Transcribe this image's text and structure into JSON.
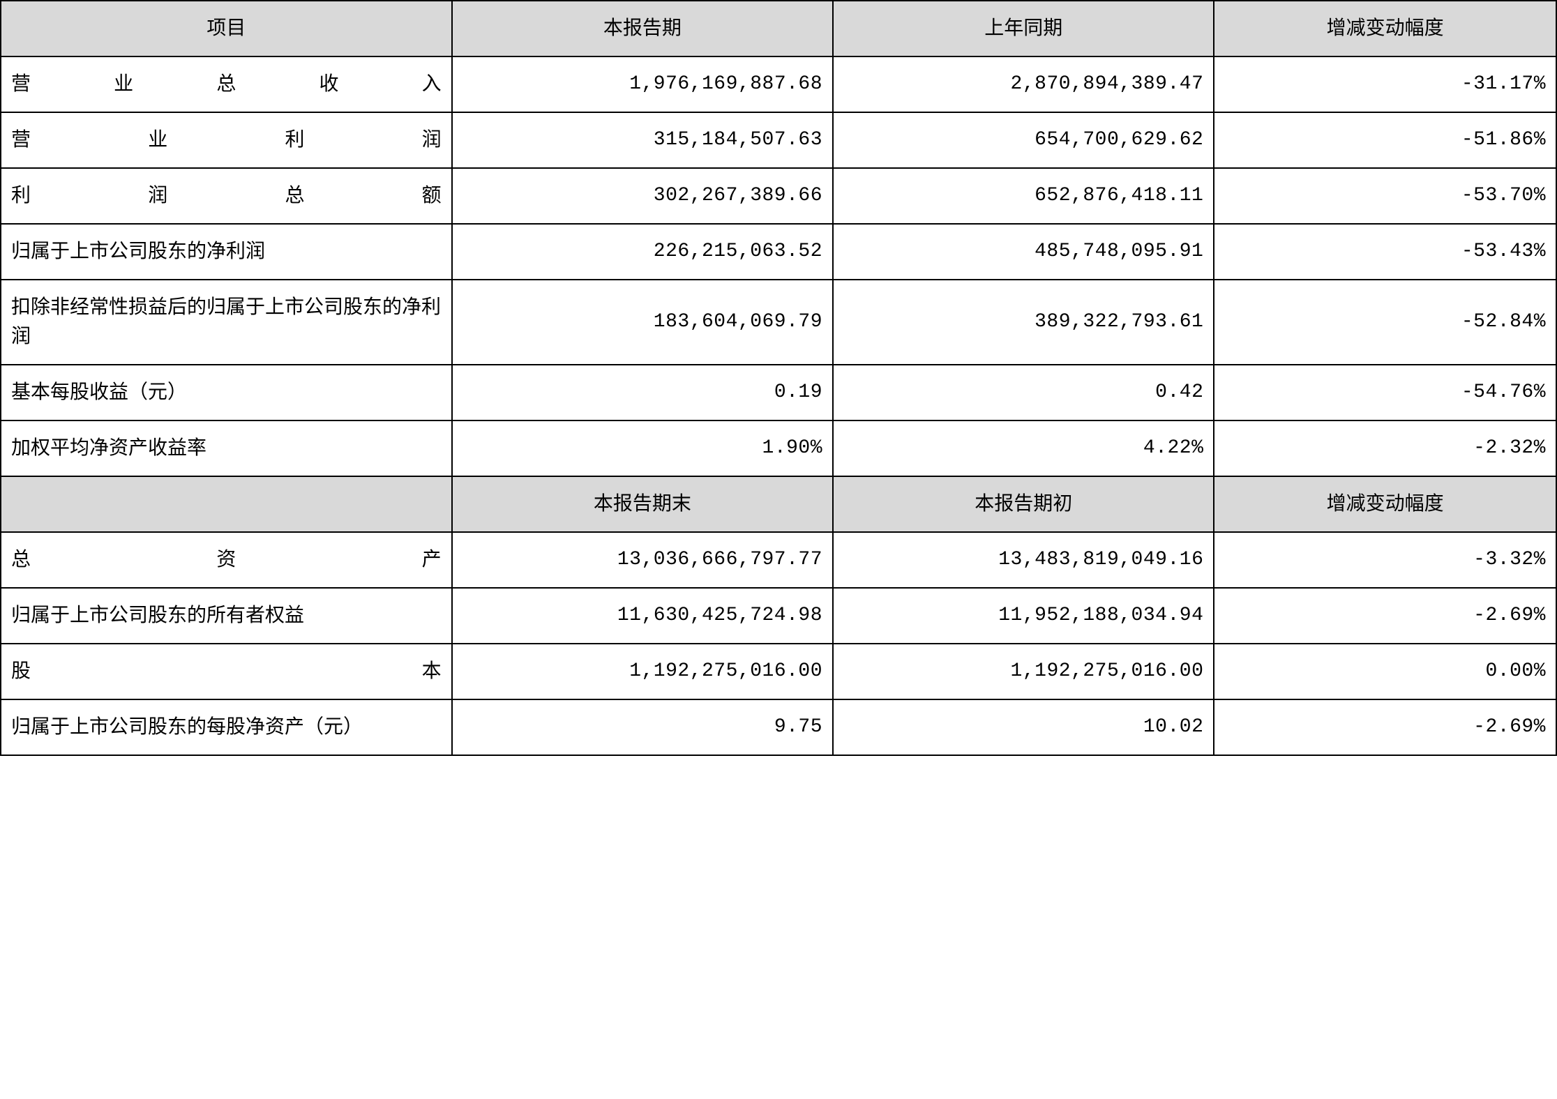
{
  "table": {
    "type": "table",
    "background_color": "#ffffff",
    "header_bg_color": "#d9d9d9",
    "border_color": "#000000",
    "font_size": 28,
    "columns": [
      {
        "key": "item",
        "width_pct": 29,
        "align": "left"
      },
      {
        "key": "current",
        "width_pct": 24.5,
        "align": "right"
      },
      {
        "key": "previous",
        "width_pct": 24.5,
        "align": "right"
      },
      {
        "key": "change",
        "width_pct": 22,
        "align": "right"
      }
    ],
    "header1": {
      "item": "项目",
      "current": "本报告期",
      "previous": "上年同期",
      "change": "增减变动幅度"
    },
    "section1_rows": [
      {
        "item": "营业总收入",
        "current": "1,976,169,887.68",
        "previous": "2,870,894,389.47",
        "change": "-31.17%"
      },
      {
        "item": "营业利润",
        "current": "315,184,507.63",
        "previous": "654,700,629.62",
        "change": "-51.86%"
      },
      {
        "item": "利润总额",
        "current": "302,267,389.66",
        "previous": "652,876,418.11",
        "change": "-53.70%"
      },
      {
        "item": "归属于上市公司股东的净利润",
        "current": "226,215,063.52",
        "previous": "485,748,095.91",
        "change": "-53.43%"
      },
      {
        "item": "扣除非经常性损益后的归属于上市公司股东的净利润",
        "current": "183,604,069.79",
        "previous": "389,322,793.61",
        "change": "-52.84%"
      },
      {
        "item": "基本每股收益（元）",
        "current": "0.19",
        "previous": "0.42",
        "change": "-54.76%"
      },
      {
        "item": "加权平均净资产收益率",
        "current": "1.90%",
        "previous": "4.22%",
        "change": "-2.32%"
      }
    ],
    "header2": {
      "item": "",
      "current": "本报告期末",
      "previous": "本报告期初",
      "change": "增减变动幅度"
    },
    "section2_rows": [
      {
        "item": "总资产",
        "current": "13,036,666,797.77",
        "previous": "13,483,819,049.16",
        "change": "-3.32%"
      },
      {
        "item": "归属于上市公司股东的所有者权益",
        "current": "11,630,425,724.98",
        "previous": "11,952,188,034.94",
        "change": "-2.69%"
      },
      {
        "item": "股本",
        "current": "1,192,275,016.00",
        "previous": "1,192,275,016.00",
        "change": "0.00%"
      },
      {
        "item": "归属于上市公司股东的每股净资产（元）",
        "current": "9.75",
        "previous": "10.02",
        "change": "-2.69%"
      }
    ]
  }
}
